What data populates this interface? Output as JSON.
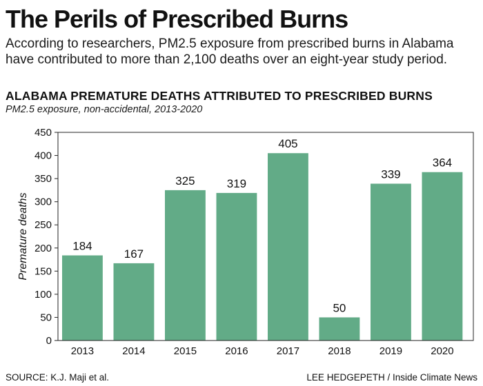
{
  "headline": "The Perils of Prescribed Burns",
  "intro": "According to researchers, PM2.5 exposure from prescribed burns in Alabama have contributed to more than 2,100 deaths over an eight-year study period.",
  "chart_data": {
    "type": "bar",
    "title": "ALABAMA PREMATURE DEATHS ATTRIBUTED TO PRESCRIBED BURNS",
    "subtitle": "PM2.5 exposure, non-accidental, 2013-2020",
    "xlabel": "",
    "ylabel": "Premature deaths",
    "categories": [
      "2013",
      "2014",
      "2015",
      "2016",
      "2017",
      "2018",
      "2019",
      "2020"
    ],
    "values": [
      184,
      167,
      325,
      319,
      405,
      50,
      339,
      364
    ],
    "data_labels": [
      "184",
      "167",
      "325",
      "319",
      "405",
      "50",
      "339",
      "364"
    ],
    "ylim": [
      0,
      450
    ],
    "yticks": [
      "0",
      "50",
      "100",
      "150",
      "200",
      "250",
      "300",
      "350",
      "400",
      "450"
    ],
    "grid": false,
    "legend": "none",
    "bar_color": "#62ab87"
  },
  "footer": {
    "source": "SOURCE: K.J. Maji et al.",
    "credit": "LEE HEDGEPETH / Inside Climate News"
  }
}
